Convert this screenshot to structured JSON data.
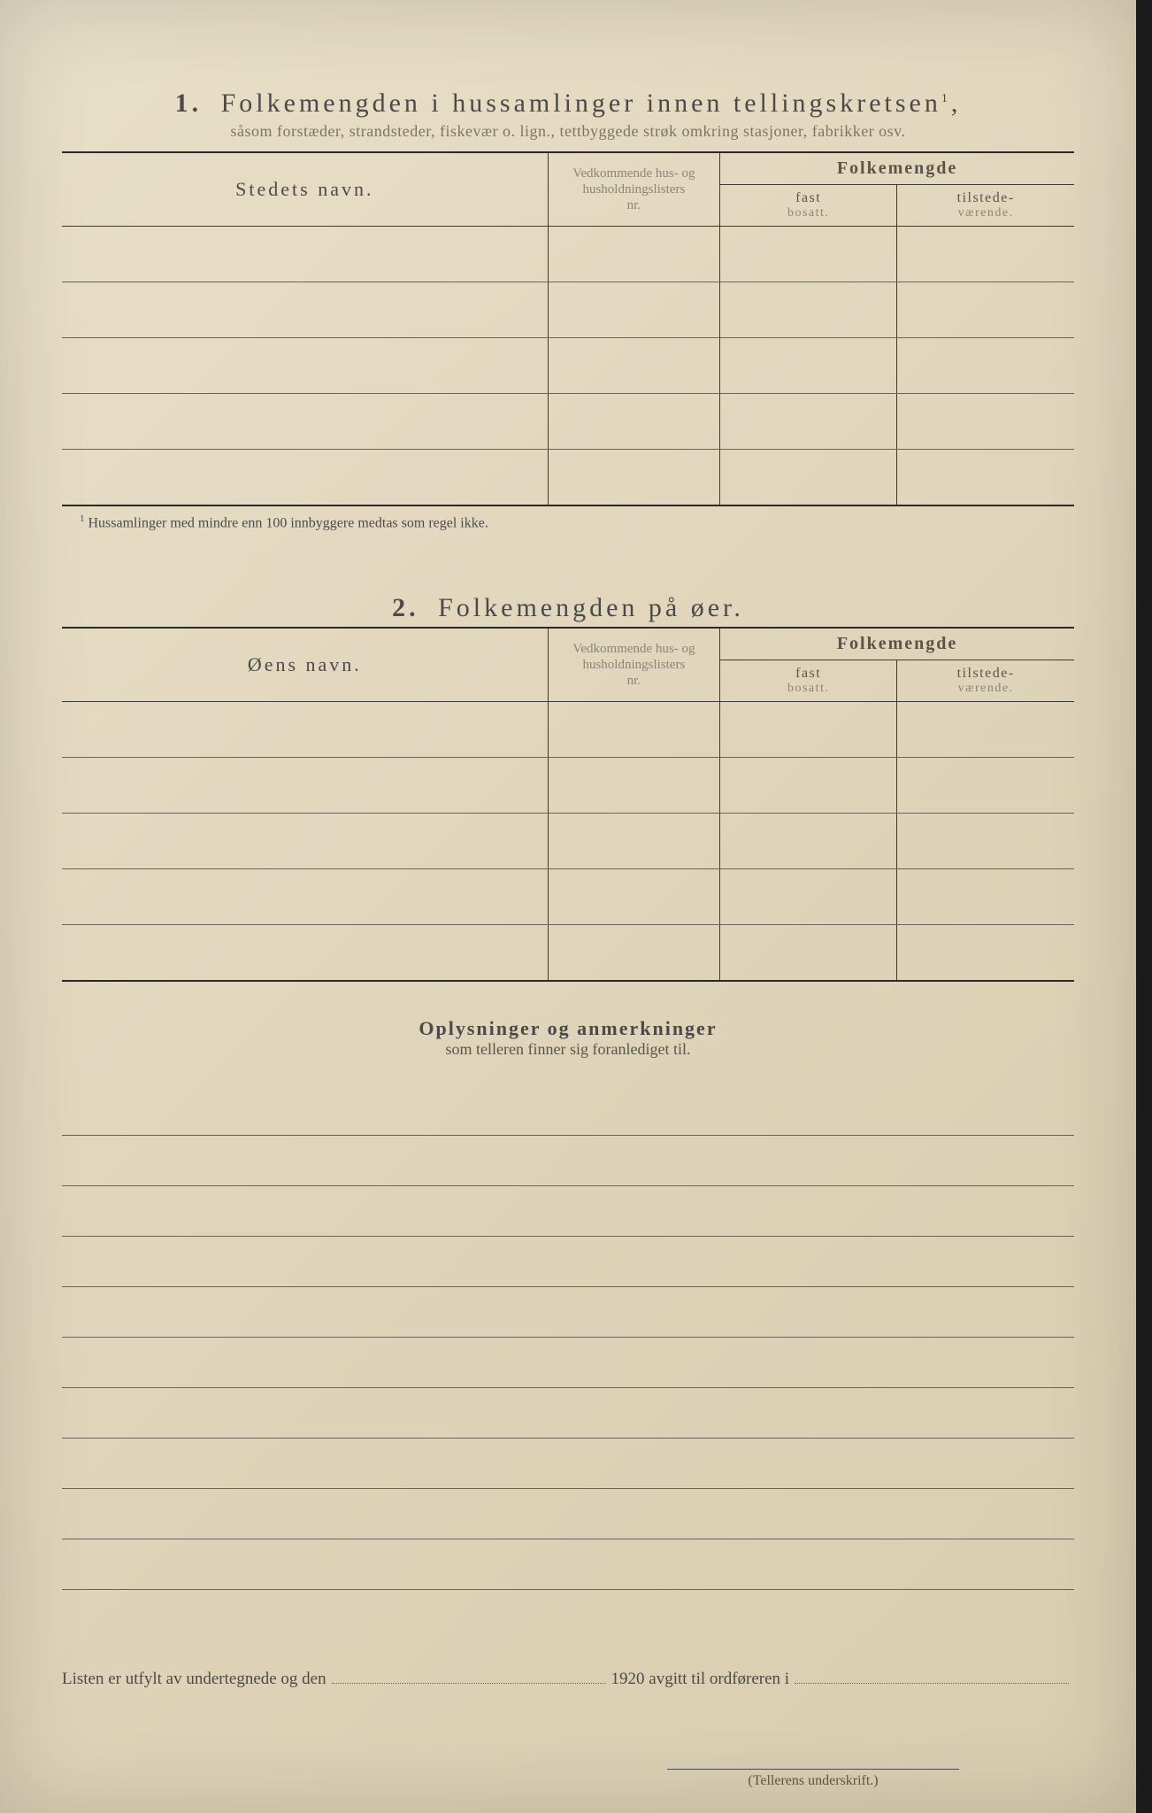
{
  "section1": {
    "number": "1.",
    "title": "Folkemengden i hussamlinger innen tellingskretsen",
    "title_sup": "1",
    "subtitle": "såsom forstæder, strandsteder, fiskevær o. lign., tettbyggede strøk omkring stasjoner, fabrikker osv.",
    "headers": {
      "col1": "Stedets navn.",
      "col2_a": "Vedkommende hus- og",
      "col2_b": "husholdningslisters",
      "col2_c": "nr.",
      "col3": "Folkemengde",
      "col3a_top": "fast",
      "col3a_bot": "bosatt.",
      "col3b_top": "tilstede-",
      "col3b_bot": "værende."
    },
    "rows": 5,
    "footnote_sup": "1",
    "footnote": "Hussamlinger med mindre enn 100 innbyggere medtas som regel ikke."
  },
  "section2": {
    "number": "2.",
    "title": "Folkemengden på øer.",
    "headers": {
      "col1": "Øens navn.",
      "col2_a": "Vedkommende hus- og",
      "col2_b": "husholdningslisters",
      "col2_c": "nr.",
      "col3": "Folkemengde",
      "col3a_top": "fast",
      "col3a_bot": "bosatt.",
      "col3b_top": "tilstede-",
      "col3b_bot": "værende."
    },
    "rows": 5
  },
  "notes": {
    "title": "Oplysninger og anmerkninger",
    "subtitle": "som telleren finner sig foranlediget til.",
    "line_count": 10
  },
  "bottom": {
    "part1": "Listen er utfylt av undertegnede og den",
    "part2": "1920 avgitt til ordføreren i",
    "signature": "(Tellerens underskrift.)"
  },
  "style": {
    "col_widths": {
      "c1": "48%",
      "c2": "17%",
      "c3": "17.5%",
      "c4": "17.5%"
    }
  }
}
